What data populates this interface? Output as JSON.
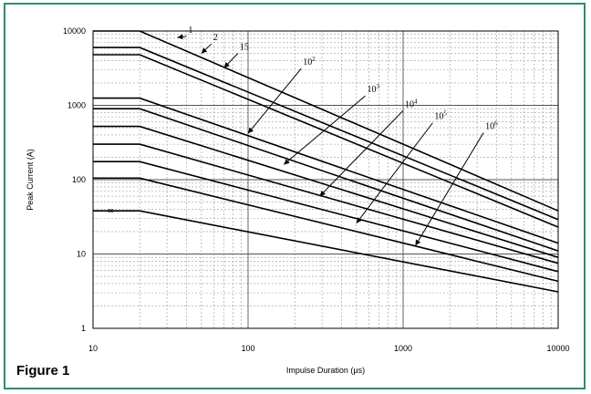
{
  "figure_label": "Figure 1",
  "chart_data": {
    "type": "line",
    "title": "",
    "xlabel": "Impulse Duration (µs)",
    "ylabel": "Peak Current (A)",
    "x_scale": "log",
    "y_scale": "log",
    "xlim": [
      10,
      10000
    ],
    "ylim": [
      1,
      10000
    ],
    "x_ticks": [
      "10",
      "100",
      "1000",
      "10000"
    ],
    "y_ticks": [
      "1",
      "10",
      "100",
      "1000",
      "10000"
    ],
    "grid": true,
    "curve_label_color": "#000000",
    "line_color": "#000000",
    "series": [
      {
        "label": "1",
        "x": [
          10,
          20,
          10000
        ],
        "y": [
          10000,
          10000,
          38
        ]
      },
      {
        "label": "2",
        "x": [
          10,
          20,
          10000
        ],
        "y": [
          6000,
          6000,
          29
        ]
      },
      {
        "label": "15",
        "x": [
          10,
          20,
          10000
        ],
        "y": [
          4800,
          4800,
          23
        ]
      },
      {
        "label": "10",
        "sup": "2",
        "x": [
          10,
          20,
          10000
        ],
        "y": [
          1250,
          1250,
          14
        ]
      },
      {
        "label": "",
        "x": [
          10,
          20,
          10000
        ],
        "y": [
          900,
          900,
          11
        ]
      },
      {
        "label": "10",
        "sup": "3",
        "x": [
          10,
          20,
          10000
        ],
        "y": [
          520,
          520,
          9
        ]
      },
      {
        "label": "10",
        "sup": "4",
        "x": [
          10,
          20,
          10000
        ],
        "y": [
          300,
          300,
          7.5
        ]
      },
      {
        "label": "10",
        "sup": "5",
        "x": [
          10,
          20,
          10000
        ],
        "y": [
          175,
          175,
          5.8
        ]
      },
      {
        "label": "10",
        "sup": "6",
        "x": [
          10,
          20,
          10000
        ],
        "y": [
          105,
          105,
          4.3
        ]
      },
      {
        "label": "",
        "x": [
          10,
          20,
          10000
        ],
        "y": [
          38,
          38,
          3.1
        ]
      }
    ],
    "annotations": [
      {
        "text": "1",
        "sup": "",
        "text_at": [
          40,
          9500
        ],
        "arrow_to": [
          35,
          8200
        ]
      },
      {
        "text": "2",
        "sup": "",
        "text_at": [
          58,
          7500
        ],
        "arrow_to": [
          50,
          5000
        ]
      },
      {
        "text": "15",
        "sup": "",
        "text_at": [
          86,
          5600
        ],
        "arrow_to": [
          70,
          3200
        ]
      },
      {
        "text": "10",
        "sup": "2",
        "text_at": [
          220,
          3500
        ],
        "arrow_to": [
          100,
          420
        ]
      },
      {
        "text": "10",
        "sup": "3",
        "text_at": [
          570,
          1500
        ],
        "arrow_to": [
          170,
          160
        ]
      },
      {
        "text": "10",
        "sup": "4",
        "text_at": [
          1000,
          950
        ],
        "arrow_to": [
          290,
          60
        ]
      },
      {
        "text": "10",
        "sup": "5",
        "text_at": [
          1550,
          650
        ],
        "arrow_to": [
          500,
          26
        ]
      },
      {
        "text": "10",
        "sup": "6",
        "text_at": [
          3300,
          480
        ],
        "arrow_to": [
          1200,
          13
        ]
      }
    ],
    "side_marker": {
      "text": "∞",
      "at": [
        13,
        38
      ]
    }
  }
}
